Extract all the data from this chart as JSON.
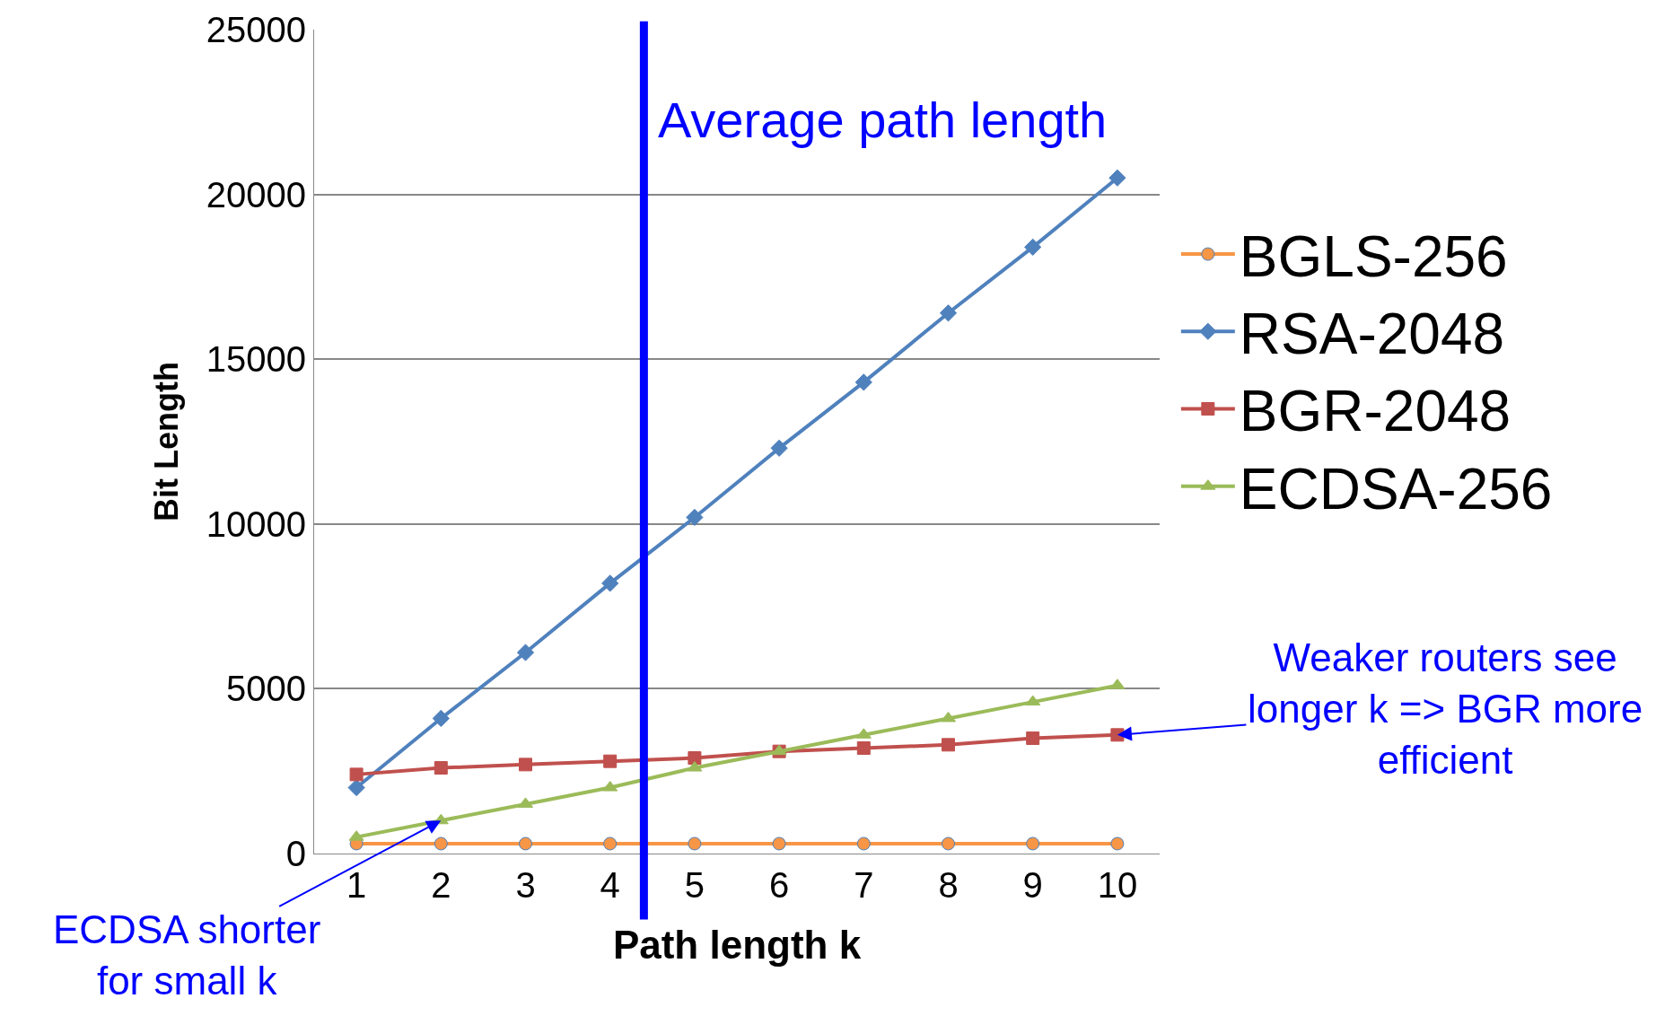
{
  "chart_data": {
    "type": "line",
    "xlabel": "Path length k",
    "ylabel": "Bit Length",
    "x": [
      1,
      2,
      3,
      4,
      5,
      6,
      7,
      8,
      9,
      10
    ],
    "xlim": [
      0.5,
      10.5
    ],
    "xticks": [
      1,
      2,
      3,
      4,
      5,
      6,
      7,
      8,
      9,
      10
    ],
    "ylim": [
      0,
      25000
    ],
    "yticks": [
      0,
      5000,
      10000,
      15000,
      20000,
      25000
    ],
    "grid": "y",
    "legend": "right",
    "series": [
      {
        "name": "BGLS-256",
        "color": "#f79646",
        "marker": "circle",
        "values": [
          300,
          300,
          300,
          300,
          300,
          300,
          300,
          300,
          300,
          300
        ]
      },
      {
        "name": "RSA-2048",
        "color": "#4f81bd",
        "marker": "diamond",
        "values": [
          2000,
          4100,
          6100,
          8200,
          10200,
          12300,
          14300,
          16400,
          18400,
          20500
        ]
      },
      {
        "name": "BGR-2048",
        "color": "#c0504d",
        "marker": "square",
        "values": [
          2400,
          2600,
          2700,
          2800,
          2900,
          3100,
          3200,
          3300,
          3500,
          3600
        ]
      },
      {
        "name": "ECDSA-256",
        "color": "#9bbb59",
        "marker": "triangle",
        "values": [
          500,
          1000,
          1500,
          2000,
          2600,
          3100,
          3600,
          4100,
          4600,
          5100
        ]
      }
    ],
    "ref_lines": [
      {
        "axis": "x",
        "value": 4.4,
        "label": "Average path length",
        "color": "#0000ff"
      }
    ],
    "annotations": [
      {
        "text": "ECDSA shorter for small k",
        "x": 2,
        "y": 1000
      },
      {
        "text": "Weaker routers see longer k => BGR more efficient",
        "x": 10,
        "y": 3600
      }
    ]
  }
}
